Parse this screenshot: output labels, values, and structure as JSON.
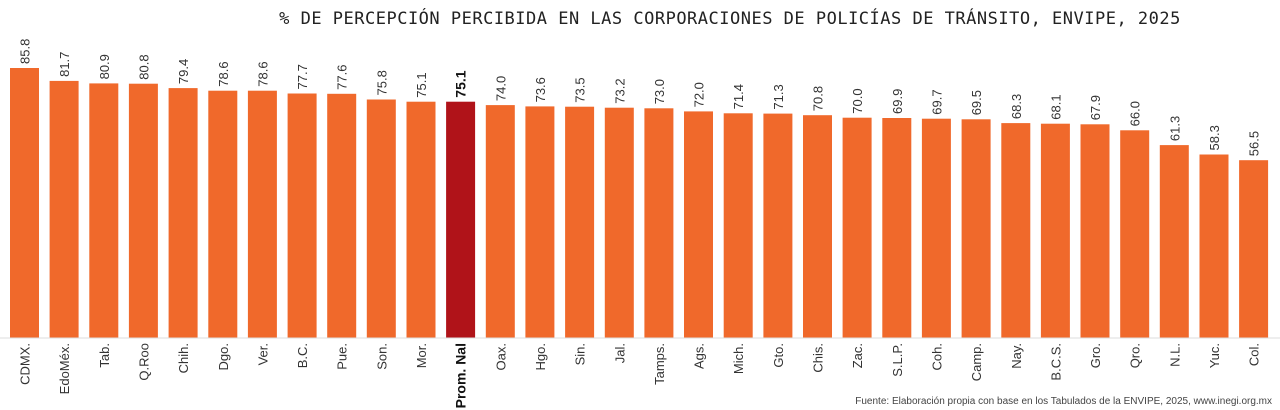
{
  "title": "% DE PERCEPCIÓN PERCIBIDA EN LAS CORPORACIONES DE POLICÍAS DE TRÁNSITO, ENVIPE, 2025",
  "source": "Fuente: Elaboración propia con base en los Tabulados de la ENVIPE, 2025, www.inegi.org.mx",
  "colors": {
    "bar": "#f0692b",
    "highlight": "#b01319",
    "text": "#333333"
  },
  "chart_data": {
    "type": "bar",
    "title": "% DE PERCEPCIÓN PERCIBIDA EN LAS CORPORACIONES DE POLICÍAS DE TRÁNSITO, ENVIPE, 2025",
    "categories": [
      "CDMX.",
      "EdoMéx.",
      "Tab.",
      "Q.Roo",
      "Chih.",
      "Dgo.",
      "Ver.",
      "B.C.",
      "Pue.",
      "Son.",
      "Mor.",
      "Prom. Nal",
      "Oax.",
      "Hgo.",
      "Sin.",
      "Jal.",
      "Tamps.",
      "Ags.",
      "Mich.",
      "Gto.",
      "Chis.",
      "Zac.",
      "S.L.P.",
      "Coh.",
      "Camp.",
      "Nay.",
      "B.C.S.",
      "Gro.",
      "Qro.",
      "N.L.",
      "Yuc.",
      "Col."
    ],
    "values": [
      85.8,
      81.7,
      80.9,
      80.8,
      79.4,
      78.6,
      78.6,
      77.7,
      77.6,
      75.8,
      75.1,
      75.1,
      74.0,
      73.6,
      73.5,
      73.2,
      73.0,
      72.0,
      71.4,
      71.3,
      70.8,
      70.0,
      69.9,
      69.7,
      69.5,
      68.3,
      68.1,
      67.9,
      66.0,
      61.3,
      58.3,
      56.5
    ],
    "value_labels": [
      "85.8",
      "81.7",
      "80.9",
      "80.8",
      "79.4",
      "78.6",
      "78.6",
      "77.7",
      "77.6",
      "75.8",
      "75.1",
      "75.1",
      "74.0",
      "73.6",
      "73.5",
      "73.2",
      "73.0",
      "72.0",
      "71.4",
      "71.3",
      "70.8",
      "70.0",
      "69.9",
      "69.7",
      "69.5",
      "68.3",
      "68.1",
      "67.9",
      "66.0",
      "61.3",
      "58.3",
      "56.5"
    ],
    "highlight": "Prom. Nal",
    "ylim": [
      0,
      85.8
    ],
    "xlabel": "",
    "ylabel": "",
    "grid": false,
    "legend": "none"
  }
}
